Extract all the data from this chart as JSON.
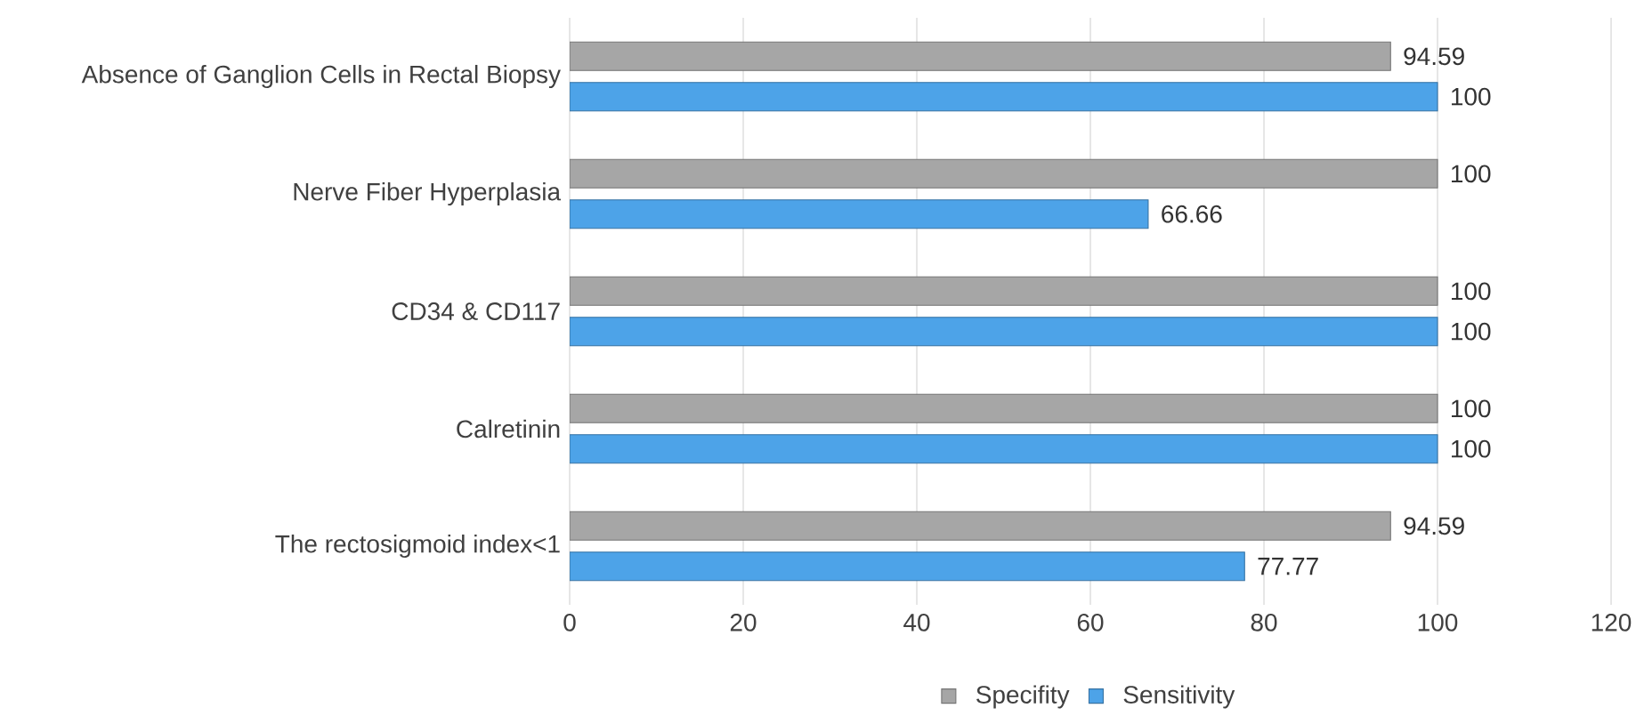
{
  "chart_data": {
    "type": "bar",
    "orientation": "horizontal",
    "categories": [
      "Absence of Ganglion Cells in Rectal Biopsy",
      "Nerve Fiber Hyperplasia",
      "CD34 & CD117",
      "Calretinin",
      "The rectosigmoid index<1"
    ],
    "series": [
      {
        "name": "Specifity",
        "color": "#a6a6a6",
        "values": [
          94.59,
          100,
          100,
          100,
          94.59
        ]
      },
      {
        "name": "Sensitivity",
        "color": "#4da3e8",
        "values": [
          100,
          66.66,
          100,
          100,
          77.77
        ]
      }
    ],
    "xlim": [
      0,
      120
    ],
    "xticks": [
      0,
      20,
      40,
      60,
      80,
      100,
      120
    ],
    "grid": "x",
    "legend": "bottom",
    "data_labels": true
  }
}
